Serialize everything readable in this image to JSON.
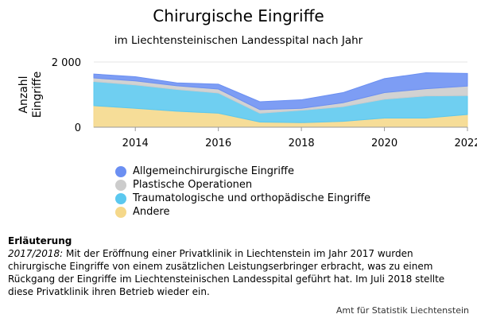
{
  "chart_data": {
    "type": "area",
    "stacked": true,
    "title": "Chirurgische Eingriffe",
    "subtitle": "im Liechtensteinischen Landesspital nach Jahr",
    "ylabel": "Anzahl Eingriffe",
    "ylabel_lines": [
      "Anzahl",
      "Eingriffe"
    ],
    "x": [
      2013,
      2014,
      2015,
      2016,
      2017,
      2018,
      2019,
      2020,
      2021,
      2022
    ],
    "xticks": [
      2014,
      2016,
      2018,
      2020,
      2022
    ],
    "xlim": [
      2013,
      2022
    ],
    "ylim": [
      0,
      2000
    ],
    "yticks": [
      0,
      2000
    ],
    "ytick_labels": [
      "0",
      "2 000"
    ],
    "grid": true,
    "legend_position": "bottom-left",
    "series": [
      {
        "name": "Andere",
        "color": "#f5d88a",
        "values": [
          660,
          580,
          490,
          430,
          160,
          140,
          180,
          280,
          280,
          390
        ]
      },
      {
        "name": "Traumatologische und orthopädische Eingriffe",
        "color": "#5bc8ef",
        "values": [
          740,
          720,
          670,
          620,
          270,
          380,
          450,
          580,
          680,
          580
        ]
      },
      {
        "name": "Plastische Operationen",
        "color": "#cccccc",
        "values": [
          110,
          120,
          110,
          120,
          110,
          60,
          120,
          200,
          220,
          290
        ]
      },
      {
        "name": "Allgemeinchirurgische Eingriffe",
        "color": "#6b8ff2",
        "values": [
          120,
          130,
          90,
          150,
          240,
          260,
          310,
          430,
          490,
          390
        ]
      }
    ]
  },
  "legend_items": [
    {
      "label": "Allgemeinchirurgische Eingriffe",
      "color": "#6b8ff2"
    },
    {
      "label": "Plastische Operationen",
      "color": "#cccccc"
    },
    {
      "label": "Traumatologische und orthopädische Eingriffe",
      "color": "#5bc8ef"
    },
    {
      "label": "Andere",
      "color": "#f5d88a"
    }
  ],
  "note": {
    "heading": "Erläuterung",
    "italic_prefix": "2017/2018:",
    "text": " Mit der Eröffnung einer Privatklinik in Liechtenstein im Jahr 2017 wurden chirurgische Eingriffe von einem zusätzlichen Leistungserbringer erbracht, was zu einem Rückgang der Eingriffe im Liechtensteinischen Landesspital geführt hat. Im Juli 2018 stellte diese Privatklinik ihren Betrieb wieder ein."
  },
  "source": "Amt für Statistik Liechtenstein"
}
